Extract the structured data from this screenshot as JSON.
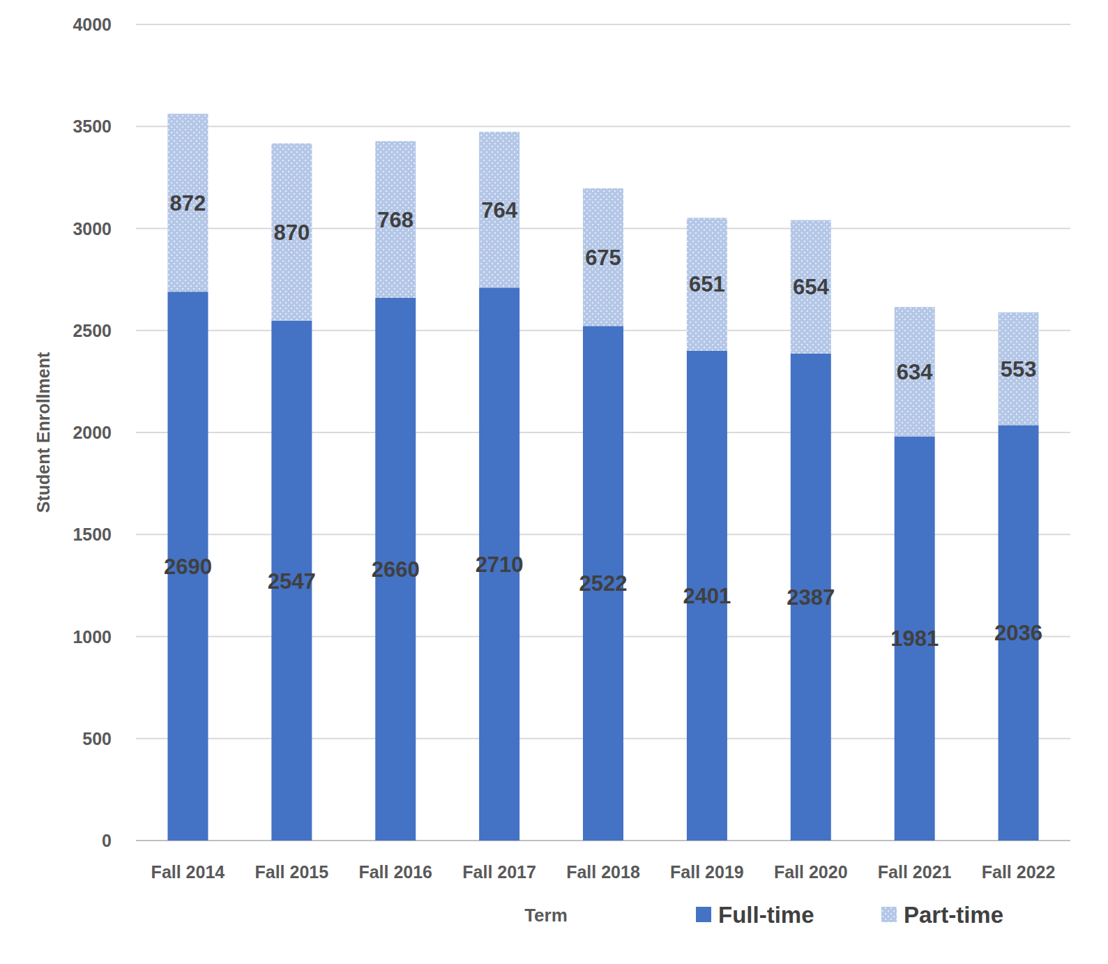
{
  "chart_data": {
    "type": "bar",
    "stacked": true,
    "x_label": "Term",
    "y_label": "Student Enrollment",
    "categories": [
      "Fall 2014",
      "Fall 2015",
      "Fall 2016",
      "Fall 2017",
      "Fall 2018",
      "Fall 2019",
      "Fall 2020",
      "Fall 2021",
      "Fall 2022"
    ],
    "series": [
      {
        "name": "Full-time",
        "color": "#4472c4",
        "values": [
          2690,
          2547,
          2660,
          2710,
          2522,
          2401,
          2387,
          1981,
          2036
        ]
      },
      {
        "name": "Part-time",
        "color": "#b4c7e7",
        "values": [
          872,
          870,
          768,
          764,
          675,
          651,
          654,
          634,
          553
        ]
      }
    ],
    "ylim": [
      0,
      4000
    ],
    "yticks": [
      0,
      500,
      1000,
      1500,
      2000,
      2500,
      3000,
      3500,
      4000
    ],
    "grid": true,
    "legend": "bottom-right",
    "data_labels": true
  }
}
